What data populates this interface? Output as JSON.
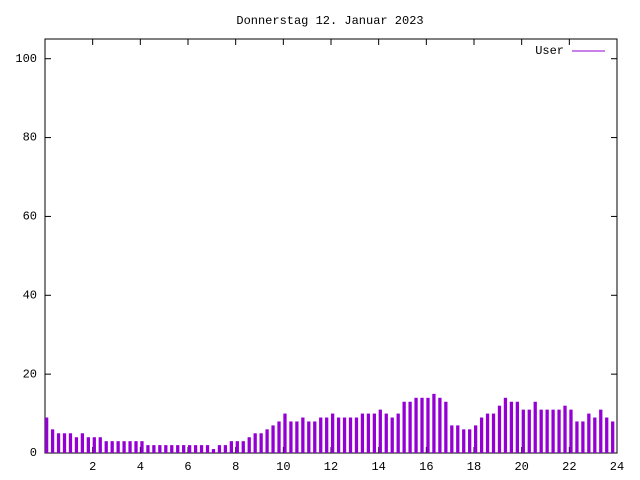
{
  "chart_data": {
    "type": "impulse",
    "title": "Donnerstag 12. Januar 2023",
    "x": [
      0,
      0.25,
      0.5,
      0.75,
      1,
      1.25,
      1.5,
      1.75,
      2,
      2.25,
      2.5,
      2.75,
      3,
      3.25,
      3.5,
      3.75,
      4,
      4.25,
      4.5,
      4.75,
      5,
      5.25,
      5.5,
      5.75,
      6,
      6.25,
      6.5,
      6.75,
      7,
      7.25,
      7.5,
      7.75,
      8,
      8.25,
      8.5,
      8.75,
      9,
      9.25,
      9.5,
      9.75,
      10,
      10.25,
      10.5,
      10.75,
      11,
      11.25,
      11.5,
      11.75,
      12,
      12.25,
      12.5,
      12.75,
      13,
      13.25,
      13.5,
      13.75,
      14,
      14.25,
      14.5,
      14.75,
      15,
      15.25,
      15.5,
      15.75,
      16,
      16.25,
      16.5,
      16.75,
      17,
      17.25,
      17.5,
      17.75,
      18,
      18.25,
      18.5,
      18.75,
      19,
      19.25,
      19.5,
      19.75,
      20,
      20.25,
      20.5,
      20.75,
      21,
      21.25,
      21.5,
      21.75,
      22,
      22.25,
      22.5,
      22.75,
      23,
      23.25,
      23.5,
      23.75
    ],
    "series": [
      {
        "name": "User",
        "color": "#9400d3",
        "values": [
          9,
          6,
          5,
          5,
          5,
          4,
          5,
          4,
          4,
          4,
          3,
          3,
          3,
          3,
          3,
          3,
          3,
          2,
          2,
          2,
          2,
          2,
          2,
          2,
          2,
          2,
          2,
          2,
          1,
          2,
          2,
          3,
          3,
          3,
          4,
          5,
          5,
          6,
          7,
          8,
          10,
          8,
          8,
          9,
          8,
          8,
          9,
          9,
          10,
          9,
          9,
          9,
          9,
          10,
          10,
          10,
          11,
          10,
          9,
          10,
          13,
          13,
          14,
          14,
          14,
          15,
          14,
          13,
          7,
          7,
          6,
          6,
          7,
          9,
          10,
          10,
          12,
          14,
          13,
          13,
          11,
          11,
          13,
          11,
          11,
          11,
          11,
          12,
          11,
          8,
          8,
          10,
          9,
          11,
          9,
          8
        ]
      }
    ],
    "xlim": [
      0,
      24
    ],
    "xticks": [
      2,
      4,
      6,
      8,
      10,
      12,
      14,
      16,
      18,
      20,
      22,
      24
    ],
    "ylim": [
      0,
      105
    ],
    "yticks": [
      0,
      20,
      40,
      60,
      80,
      100
    ],
    "legend": "top-right"
  }
}
